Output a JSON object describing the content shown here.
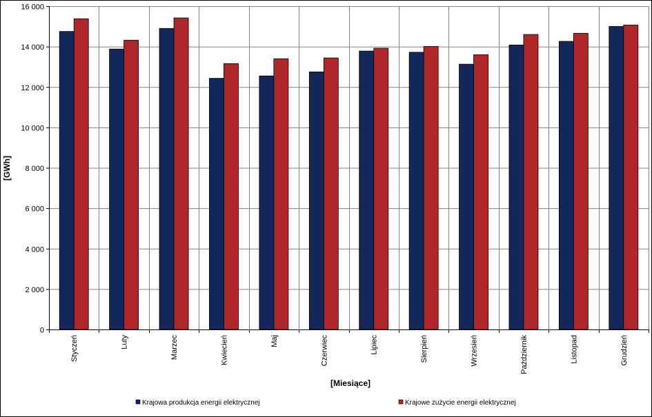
{
  "chart_data": {
    "type": "bar",
    "title": "",
    "xlabel": "[Miesiące]",
    "ylabel": "[GWh]",
    "ylim": [
      0,
      16000
    ],
    "yticks": [
      0,
      2000,
      4000,
      6000,
      8000,
      10000,
      12000,
      14000,
      16000
    ],
    "ytick_labels": [
      "0",
      "2 000",
      "4 000",
      "6 000",
      "8 000",
      "10 000",
      "12 000",
      "14 000",
      "16 000"
    ],
    "grid": true,
    "legend_position": "bottom",
    "categories": [
      "Styczeń",
      "Luty",
      "Marzec",
      "Kwiecień",
      "Maj",
      "Czerwiec",
      "Lipiec",
      "Sierpień",
      "Wrzesień",
      "Październik",
      "Listopad",
      "Grudzień"
    ],
    "series": [
      {
        "name": "Krajowa produkcja energii elektrycznej",
        "color": "#13275a",
        "values": [
          14750,
          13880,
          14900,
          12430,
          12550,
          12750,
          13780,
          13720,
          13130,
          14080,
          14260,
          15000
        ]
      },
      {
        "name": "Krajowe zużycie energii elektrycznej",
        "color": "#b0272a",
        "values": [
          15380,
          14320,
          15420,
          13160,
          13400,
          13440,
          13920,
          14010,
          13600,
          14600,
          14660,
          15070
        ]
      }
    ]
  }
}
